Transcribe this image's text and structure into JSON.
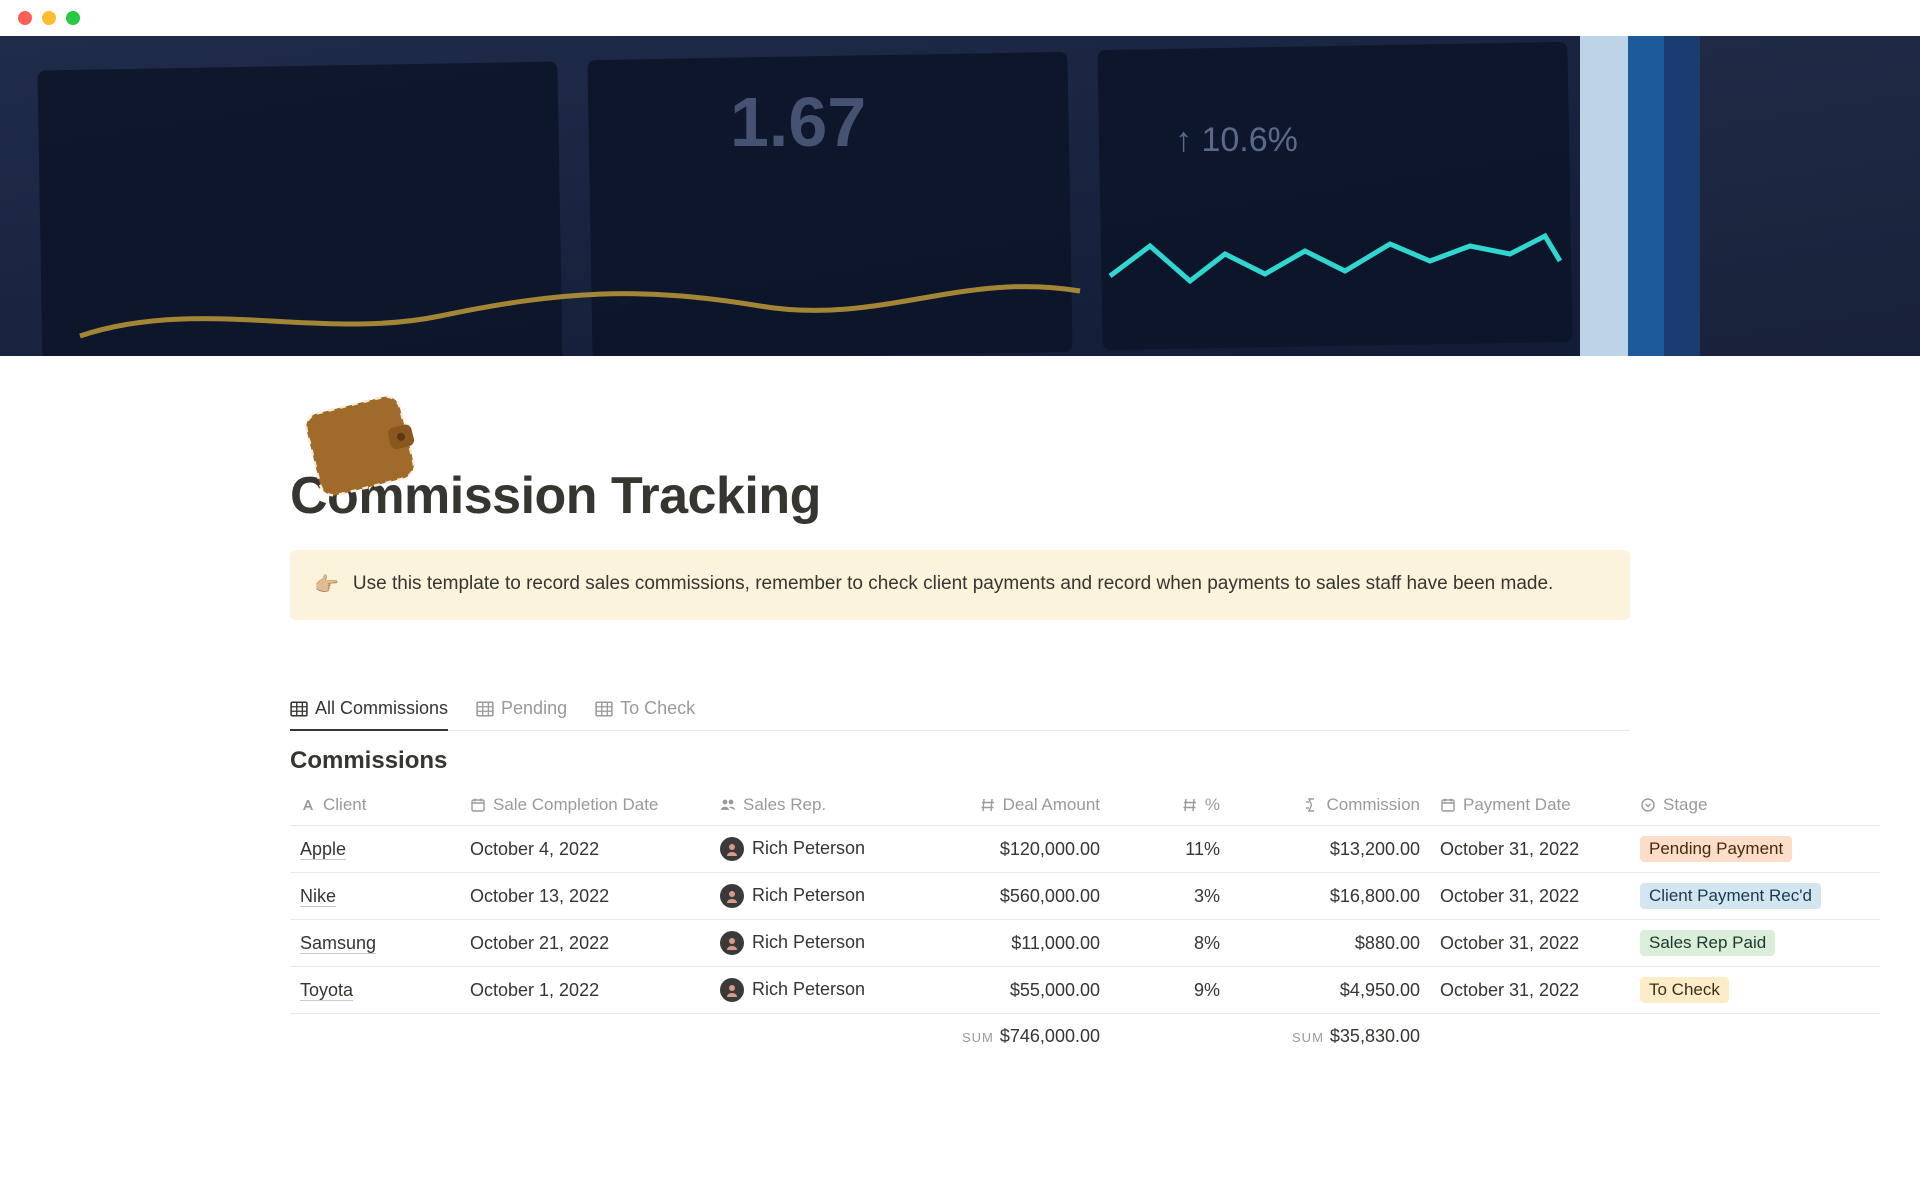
{
  "page": {
    "title": "Commission Tracking",
    "icon_name": "wallet-icon",
    "cover": {
      "bg_color": "#19263e",
      "panel_color": "#0f1830",
      "spark1_color": "#c9a13a",
      "spark2_color": "#2fd7d0",
      "overlay_text1": "1.67",
      "overlay_text2": "↑ 10.6%"
    }
  },
  "callout": {
    "icon": "👉🏼",
    "text": "Use this template to record sales commissions, remember to check client payments and record when payments to sales staff have been made."
  },
  "views": {
    "tabs": [
      {
        "label": "All Commissions",
        "active": true
      },
      {
        "label": "Pending",
        "active": false
      },
      {
        "label": "To Check",
        "active": false
      }
    ]
  },
  "database": {
    "title": "Commissions",
    "columns": [
      {
        "key": "client",
        "label": "Client",
        "icon": "text"
      },
      {
        "key": "sale_date",
        "label": "Sale Completion Date",
        "icon": "calendar"
      },
      {
        "key": "rep",
        "label": "Sales Rep.",
        "icon": "person"
      },
      {
        "key": "amount",
        "label": "Deal Amount",
        "icon": "number",
        "align": "right"
      },
      {
        "key": "pct",
        "label": "%",
        "icon": "number",
        "align": "right"
      },
      {
        "key": "commission",
        "label": "Commission",
        "icon": "formula",
        "align": "right"
      },
      {
        "key": "pay_date",
        "label": "Payment Date",
        "icon": "calendar"
      },
      {
        "key": "stage",
        "label": "Stage",
        "icon": "select"
      }
    ],
    "rows": [
      {
        "client": "Apple",
        "sale_date": "October 4, 2022",
        "rep": "Rich Peterson",
        "amount": "$120,000.00",
        "pct": "11%",
        "commission": "$13,200.00",
        "pay_date": "October 31, 2022",
        "stage": {
          "label": "Pending Payment",
          "bg": "#fadec9",
          "fg": "#49290e"
        }
      },
      {
        "client": "Nike",
        "sale_date": "October 13, 2022",
        "rep": "Rich Peterson",
        "amount": "$560,000.00",
        "pct": "3%",
        "commission": "$16,800.00",
        "pay_date": "October 31, 2022",
        "stage": {
          "label": "Client Payment Rec'd",
          "bg": "#d3e5ef",
          "fg": "#183a51"
        }
      },
      {
        "client": "Samsung",
        "sale_date": "October 21, 2022",
        "rep": "Rich Peterson",
        "amount": "$11,000.00",
        "pct": "8%",
        "commission": "$880.00",
        "pay_date": "October 31, 2022",
        "stage": {
          "label": "Sales Rep Paid",
          "bg": "#dbeddb",
          "fg": "#1c3829"
        }
      },
      {
        "client": "Toyota",
        "sale_date": "October 1, 2022",
        "rep": "Rich Peterson",
        "amount": "$55,000.00",
        "pct": "9%",
        "commission": "$4,950.00",
        "pay_date": "October 31, 2022",
        "stage": {
          "label": "To Check",
          "bg": "#fdecc8",
          "fg": "#402c1b"
        }
      }
    ],
    "sums": {
      "amount": "$746,000.00",
      "commission": "$35,830.00",
      "label": "SUM"
    }
  },
  "colors": {
    "traffic_red": "#ff5f57",
    "traffic_yellow": "#febc2e",
    "traffic_green": "#28c840",
    "callout_bg": "#fbf3db",
    "text": "#37352f",
    "muted": "#9b9a97",
    "border": "#e9e9e7"
  }
}
